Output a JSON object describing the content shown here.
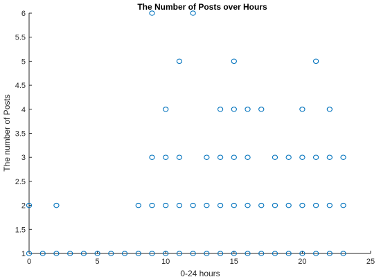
{
  "chart_data": {
    "type": "scatter",
    "title": "The Number of Posts over Hours",
    "xlabel": "0-24 hours",
    "ylabel": "The number of Posts",
    "xlim": [
      0,
      25
    ],
    "ylim": [
      1,
      6
    ],
    "xticks": [
      0,
      5,
      10,
      15,
      20,
      25
    ],
    "xtick_labels": [
      "0",
      "5",
      "10",
      "15",
      "20",
      "25"
    ],
    "yticks": [
      1,
      1.5,
      2,
      2.5,
      3,
      3.5,
      4,
      4.5,
      5,
      5.5,
      6
    ],
    "ytick_labels": [
      "1",
      "1.5",
      "2",
      "2.5",
      "3",
      "3.5",
      "4",
      "4.5",
      "5",
      "5.5",
      "6"
    ],
    "grid": false,
    "marker": "circle-open",
    "color": "#0072BD",
    "points": [
      {
        "x": 0,
        "y": 1
      },
      {
        "x": 1,
        "y": 1
      },
      {
        "x": 2,
        "y": 1
      },
      {
        "x": 3,
        "y": 1
      },
      {
        "x": 4,
        "y": 1
      },
      {
        "x": 5,
        "y": 1
      },
      {
        "x": 6,
        "y": 1
      },
      {
        "x": 7,
        "y": 1
      },
      {
        "x": 8,
        "y": 1
      },
      {
        "x": 9,
        "y": 1
      },
      {
        "x": 10,
        "y": 1
      },
      {
        "x": 11,
        "y": 1
      },
      {
        "x": 12,
        "y": 1
      },
      {
        "x": 13,
        "y": 1
      },
      {
        "x": 14,
        "y": 1
      },
      {
        "x": 15,
        "y": 1
      },
      {
        "x": 16,
        "y": 1
      },
      {
        "x": 17,
        "y": 1
      },
      {
        "x": 18,
        "y": 1
      },
      {
        "x": 19,
        "y": 1
      },
      {
        "x": 20,
        "y": 1
      },
      {
        "x": 21,
        "y": 1
      },
      {
        "x": 22,
        "y": 1
      },
      {
        "x": 23,
        "y": 1
      },
      {
        "x": 0,
        "y": 2
      },
      {
        "x": 2,
        "y": 2
      },
      {
        "x": 8,
        "y": 2
      },
      {
        "x": 9,
        "y": 2
      },
      {
        "x": 10,
        "y": 2
      },
      {
        "x": 11,
        "y": 2
      },
      {
        "x": 12,
        "y": 2
      },
      {
        "x": 13,
        "y": 2
      },
      {
        "x": 14,
        "y": 2
      },
      {
        "x": 15,
        "y": 2
      },
      {
        "x": 16,
        "y": 2
      },
      {
        "x": 17,
        "y": 2
      },
      {
        "x": 18,
        "y": 2
      },
      {
        "x": 19,
        "y": 2
      },
      {
        "x": 20,
        "y": 2
      },
      {
        "x": 21,
        "y": 2
      },
      {
        "x": 22,
        "y": 2
      },
      {
        "x": 23,
        "y": 2
      },
      {
        "x": 9,
        "y": 3
      },
      {
        "x": 10,
        "y": 3
      },
      {
        "x": 11,
        "y": 3
      },
      {
        "x": 13,
        "y": 3
      },
      {
        "x": 14,
        "y": 3
      },
      {
        "x": 15,
        "y": 3
      },
      {
        "x": 16,
        "y": 3
      },
      {
        "x": 18,
        "y": 3
      },
      {
        "x": 19,
        "y": 3
      },
      {
        "x": 20,
        "y": 3
      },
      {
        "x": 21,
        "y": 3
      },
      {
        "x": 22,
        "y": 3
      },
      {
        "x": 23,
        "y": 3
      },
      {
        "x": 10,
        "y": 4
      },
      {
        "x": 14,
        "y": 4
      },
      {
        "x": 15,
        "y": 4
      },
      {
        "x": 16,
        "y": 4
      },
      {
        "x": 17,
        "y": 4
      },
      {
        "x": 20,
        "y": 4
      },
      {
        "x": 22,
        "y": 4
      },
      {
        "x": 11,
        "y": 5
      },
      {
        "x": 15,
        "y": 5
      },
      {
        "x": 21,
        "y": 5
      },
      {
        "x": 9,
        "y": 6
      },
      {
        "x": 12,
        "y": 6
      }
    ]
  }
}
